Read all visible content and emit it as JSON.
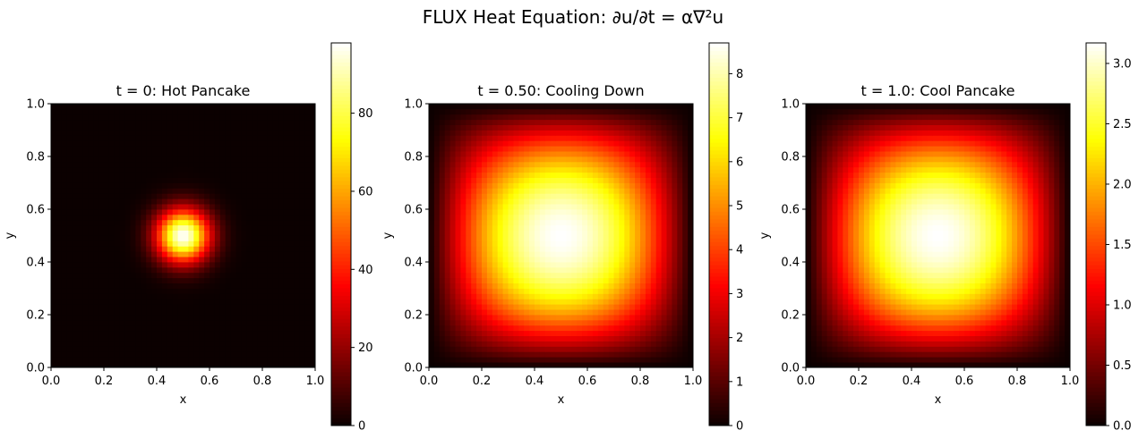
{
  "suptitle": "FLUX Heat Equation: ∂u/∂t = α∇²u",
  "chart_data": [
    {
      "type": "heatmap",
      "title": "t = 0: Hot Pancake",
      "xlabel": "x",
      "ylabel": "y",
      "xlim": [
        0.0,
        1.0
      ],
      "ylim": [
        0.0,
        1.0
      ],
      "x_ticks": [
        "0.0",
        "0.2",
        "0.4",
        "0.6",
        "0.8",
        "1.0"
      ],
      "y_ticks": [
        "0.0",
        "0.2",
        "0.4",
        "0.6",
        "0.8",
        "1.0"
      ],
      "colormap": "hot",
      "vmin": 0,
      "vmax": 98,
      "colorbar_ticks": [
        "0",
        "20",
        "40",
        "60",
        "80"
      ],
      "colorbar_tick_values": [
        0,
        20,
        40,
        60,
        80
      ],
      "grid_size": 50,
      "field": "gaussian",
      "center": [
        0.5,
        0.5
      ],
      "sigma": 0.07,
      "peak": 98
    },
    {
      "type": "heatmap",
      "title": "t = 0.50: Cooling Down",
      "xlabel": "x",
      "ylabel": "y",
      "xlim": [
        0.0,
        1.0
      ],
      "ylim": [
        0.0,
        1.0
      ],
      "x_ticks": [
        "0.0",
        "0.2",
        "0.4",
        "0.6",
        "0.8",
        "1.0"
      ],
      "y_ticks": [
        "0.0",
        "0.2",
        "0.4",
        "0.6",
        "0.8",
        "1.0"
      ],
      "colormap": "hot",
      "vmin": 0,
      "vmax": 8.7,
      "colorbar_ticks": [
        "0",
        "1",
        "2",
        "3",
        "4",
        "5",
        "6",
        "7",
        "8"
      ],
      "colorbar_tick_values": [
        0,
        1,
        2,
        3,
        4,
        5,
        6,
        7,
        8
      ],
      "grid_size": 50,
      "field": "sine_product",
      "center": [
        0.5,
        0.5
      ],
      "peak": 8.7
    },
    {
      "type": "heatmap",
      "title": "t = 1.0: Cool Pancake",
      "xlabel": "x",
      "ylabel": "y",
      "xlim": [
        0.0,
        1.0
      ],
      "ylim": [
        0.0,
        1.0
      ],
      "x_ticks": [
        "0.0",
        "0.2",
        "0.4",
        "0.6",
        "0.8",
        "1.0"
      ],
      "y_ticks": [
        "0.0",
        "0.2",
        "0.4",
        "0.6",
        "0.8",
        "1.0"
      ],
      "colormap": "hot",
      "vmin": 0,
      "vmax": 3.17,
      "colorbar_ticks": [
        "0.0",
        "0.5",
        "1.0",
        "1.5",
        "2.0",
        "2.5",
        "3.0"
      ],
      "colorbar_tick_values": [
        0.0,
        0.5,
        1.0,
        1.5,
        2.0,
        2.5,
        3.0
      ],
      "grid_size": 50,
      "field": "sine_product",
      "center": [
        0.5,
        0.5
      ],
      "peak": 3.17
    }
  ]
}
